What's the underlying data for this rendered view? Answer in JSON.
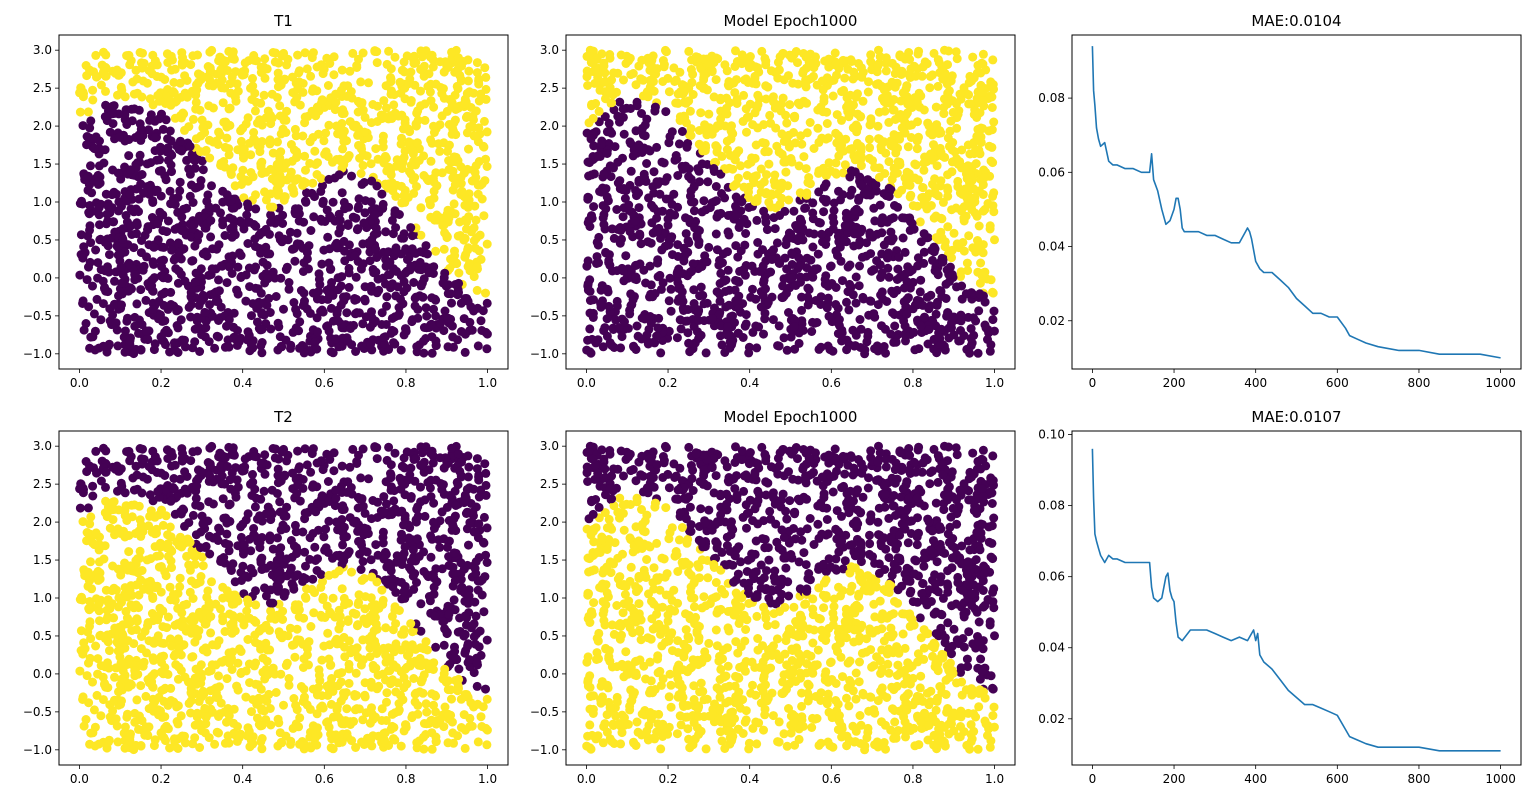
{
  "colors": {
    "class_0": "#440154",
    "class_1": "#fde725",
    "loss_line": "#1f77b4"
  },
  "boundary": {
    "description_function": "sin",
    "y_of_x": [
      [
        0.0,
        2.0
      ],
      [
        0.05,
        2.25
      ],
      [
        0.1,
        2.38
      ],
      [
        0.15,
        2.38
      ],
      [
        0.2,
        2.2
      ],
      [
        0.25,
        1.9
      ],
      [
        0.3,
        1.55
      ],
      [
        0.35,
        1.25
      ],
      [
        0.4,
        1.0
      ],
      [
        0.45,
        0.9
      ],
      [
        0.5,
        0.95
      ],
      [
        0.55,
        1.12
      ],
      [
        0.6,
        1.32
      ],
      [
        0.65,
        1.42
      ],
      [
        0.7,
        1.35
      ],
      [
        0.75,
        1.15
      ],
      [
        0.8,
        0.8
      ],
      [
        0.85,
        0.45
      ],
      [
        0.9,
        0.1
      ],
      [
        0.95,
        -0.15
      ],
      [
        1.0,
        -0.3
      ]
    ]
  },
  "chart_data": [
    {
      "type": "scatter",
      "title": "T1",
      "xlim": [
        -0.05,
        1.05
      ],
      "ylim": [
        -1.2,
        3.2
      ],
      "xticks": [
        0.0,
        0.2,
        0.4,
        0.6,
        0.8,
        1.0
      ],
      "xtick_labels": [
        "0.0",
        "0.2",
        "0.4",
        "0.6",
        "0.8",
        "1.0"
      ],
      "yticks": [
        -1.0,
        -0.5,
        0.0,
        0.5,
        1.0,
        1.5,
        2.0,
        2.5,
        3.0
      ],
      "ytick_labels": [
        "−1.0",
        "−0.5",
        "0.0",
        "0.5",
        "1.0",
        "1.5",
        "2.0",
        "2.5",
        "3.0"
      ],
      "points_sample": {
        "x_range": [
          0,
          1
        ],
        "y_range": [
          -1,
          3
        ],
        "count": 2000
      },
      "below_boundary_color": "class_0",
      "above_boundary_color": "class_1"
    },
    {
      "type": "scatter",
      "title": "Model Epoch1000",
      "xlim": [
        -0.05,
        1.05
      ],
      "ylim": [
        -1.2,
        3.2
      ],
      "xticks": [
        0.0,
        0.2,
        0.4,
        0.6,
        0.8,
        1.0
      ],
      "xtick_labels": [
        "0.0",
        "0.2",
        "0.4",
        "0.6",
        "0.8",
        "1.0"
      ],
      "yticks": [
        -1.0,
        -0.5,
        0.0,
        0.5,
        1.0,
        1.5,
        2.0,
        2.5,
        3.0
      ],
      "ytick_labels": [
        "−1.0",
        "−0.5",
        "0.0",
        "0.5",
        "1.0",
        "1.5",
        "2.0",
        "2.5",
        "3.0"
      ],
      "points_sample": {
        "x_range": [
          0,
          1
        ],
        "y_range": [
          -1,
          3
        ],
        "count": 2000
      },
      "below_boundary_color": "class_0",
      "above_boundary_color": "class_1"
    },
    {
      "type": "line",
      "title": "MAE:0.0104",
      "xlim": [
        -50,
        1050
      ],
      "ylim": [
        0.007,
        0.097
      ],
      "xticks": [
        0,
        200,
        400,
        600,
        800,
        1000
      ],
      "xtick_labels": [
        "0",
        "200",
        "400",
        "600",
        "800",
        "1000"
      ],
      "yticks": [
        0.02,
        0.04,
        0.06,
        0.08
      ],
      "ytick_labels": [
        "0.02",
        "0.04",
        "0.06",
        "0.08"
      ],
      "x": [
        0,
        3,
        6,
        10,
        15,
        20,
        30,
        40,
        50,
        60,
        80,
        100,
        120,
        140,
        145,
        150,
        160,
        170,
        180,
        190,
        200,
        205,
        210,
        215,
        220,
        225,
        230,
        240,
        250,
        260,
        280,
        300,
        320,
        340,
        360,
        375,
        380,
        385,
        390,
        400,
        410,
        420,
        440,
        460,
        480,
        500,
        520,
        540,
        560,
        580,
        600,
        620,
        630,
        650,
        670,
        700,
        750,
        800,
        850,
        900,
        950,
        1000
      ],
      "y": [
        0.094,
        0.082,
        0.078,
        0.072,
        0.069,
        0.067,
        0.068,
        0.063,
        0.062,
        0.062,
        0.061,
        0.061,
        0.06,
        0.06,
        0.065,
        0.058,
        0.055,
        0.05,
        0.046,
        0.047,
        0.05,
        0.053,
        0.053,
        0.05,
        0.045,
        0.044,
        0.044,
        0.044,
        0.044,
        0.044,
        0.043,
        0.043,
        0.042,
        0.041,
        0.041,
        0.044,
        0.045,
        0.044,
        0.042,
        0.036,
        0.034,
        0.033,
        0.033,
        0.031,
        0.029,
        0.026,
        0.024,
        0.022,
        0.022,
        0.021,
        0.021,
        0.018,
        0.016,
        0.015,
        0.014,
        0.013,
        0.012,
        0.012,
        0.011,
        0.011,
        0.011,
        0.01
      ]
    },
    {
      "type": "scatter",
      "title": "T2",
      "xlim": [
        -0.05,
        1.05
      ],
      "ylim": [
        -1.2,
        3.2
      ],
      "xticks": [
        0.0,
        0.2,
        0.4,
        0.6,
        0.8,
        1.0
      ],
      "xtick_labels": [
        "0.0",
        "0.2",
        "0.4",
        "0.6",
        "0.8",
        "1.0"
      ],
      "yticks": [
        -1.0,
        -0.5,
        0.0,
        0.5,
        1.0,
        1.5,
        2.0,
        2.5,
        3.0
      ],
      "ytick_labels": [
        "−1.0",
        "−0.5",
        "0.0",
        "0.5",
        "1.0",
        "1.5",
        "2.0",
        "2.5",
        "3.0"
      ],
      "points_sample": {
        "x_range": [
          0,
          1
        ],
        "y_range": [
          -1,
          3
        ],
        "count": 2000
      },
      "below_boundary_color": "class_1",
      "above_boundary_color": "class_0"
    },
    {
      "type": "scatter",
      "title": "Model Epoch1000",
      "xlim": [
        -0.05,
        1.05
      ],
      "ylim": [
        -1.2,
        3.2
      ],
      "xticks": [
        0.0,
        0.2,
        0.4,
        0.6,
        0.8,
        1.0
      ],
      "xtick_labels": [
        "0.0",
        "0.2",
        "0.4",
        "0.6",
        "0.8",
        "1.0"
      ],
      "yticks": [
        -1.0,
        -0.5,
        0.0,
        0.5,
        1.0,
        1.5,
        2.0,
        2.5,
        3.0
      ],
      "ytick_labels": [
        "−1.0",
        "−0.5",
        "0.0",
        "0.5",
        "1.0",
        "1.5",
        "2.0",
        "2.5",
        "3.0"
      ],
      "points_sample": {
        "x_range": [
          0,
          1
        ],
        "y_range": [
          -1,
          3
        ],
        "count": 2000
      },
      "below_boundary_color": "class_1",
      "above_boundary_color": "class_0"
    },
    {
      "type": "line",
      "title": "MAE:0.0107",
      "xlim": [
        -50,
        1050
      ],
      "ylim": [
        0.007,
        0.101
      ],
      "xticks": [
        0,
        200,
        400,
        600,
        800,
        1000
      ],
      "xtick_labels": [
        "0",
        "200",
        "400",
        "600",
        "800",
        "1000"
      ],
      "yticks": [
        0.02,
        0.04,
        0.06,
        0.08,
        0.1
      ],
      "ytick_labels": [
        "0.02",
        "0.04",
        "0.06",
        "0.08",
        "0.10"
      ],
      "x": [
        0,
        3,
        6,
        10,
        15,
        20,
        30,
        40,
        50,
        60,
        80,
        100,
        120,
        140,
        145,
        150,
        160,
        170,
        180,
        185,
        190,
        195,
        200,
        205,
        210,
        220,
        240,
        260,
        280,
        300,
        320,
        340,
        360,
        380,
        395,
        400,
        405,
        410,
        420,
        440,
        460,
        480,
        500,
        520,
        540,
        560,
        580,
        600,
        620,
        630,
        650,
        670,
        700,
        750,
        800,
        850,
        900,
        950,
        1000
      ],
      "y": [
        0.096,
        0.082,
        0.072,
        0.07,
        0.068,
        0.066,
        0.064,
        0.066,
        0.065,
        0.065,
        0.064,
        0.064,
        0.064,
        0.064,
        0.057,
        0.054,
        0.053,
        0.054,
        0.06,
        0.061,
        0.056,
        0.054,
        0.053,
        0.047,
        0.043,
        0.042,
        0.045,
        0.045,
        0.045,
        0.044,
        0.043,
        0.042,
        0.043,
        0.042,
        0.045,
        0.042,
        0.044,
        0.038,
        0.036,
        0.034,
        0.031,
        0.028,
        0.026,
        0.024,
        0.024,
        0.023,
        0.022,
        0.021,
        0.017,
        0.015,
        0.014,
        0.013,
        0.012,
        0.012,
        0.012,
        0.011,
        0.011,
        0.011,
        0.011
      ]
    }
  ]
}
